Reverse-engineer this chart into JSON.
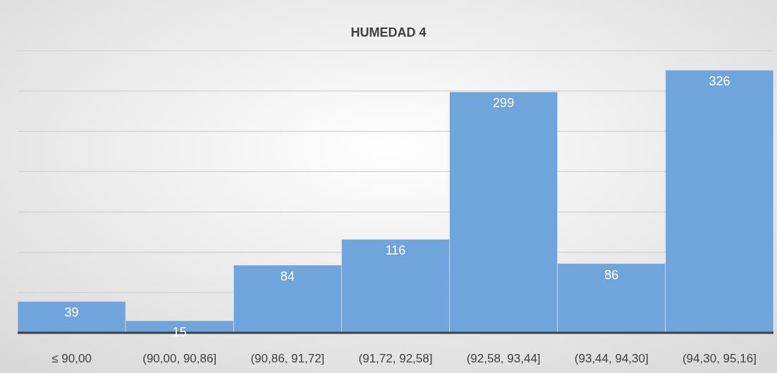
{
  "chart_data": {
    "type": "bar",
    "title": "HUMEDAD 4",
    "categories": [
      "≤ 90,00",
      "(90,00, 90,86]",
      "(90,86, 91,72]",
      "(91,72, 92,58]",
      "(92,58, 93,44]",
      "(93,44, 94,30]",
      "(94,30, 95,16]"
    ],
    "values": [
      39,
      15,
      84,
      116,
      299,
      86,
      326
    ],
    "color": "#6fa5db",
    "ylim": [
      0,
      350
    ],
    "yticks": [
      {
        "value": 0,
        "label": null
      },
      {
        "value": 50,
        "label": null
      },
      {
        "value": 100,
        "label": null
      },
      {
        "value": 150,
        "label": null
      },
      {
        "value": 200,
        "label": null
      },
      {
        "value": 250,
        "label": null
      },
      {
        "value": 300,
        "label": null
      },
      {
        "value": 350,
        "label": null
      }
    ],
    "tick_labels": "x",
    "grid": "y",
    "data_labels": true
  }
}
